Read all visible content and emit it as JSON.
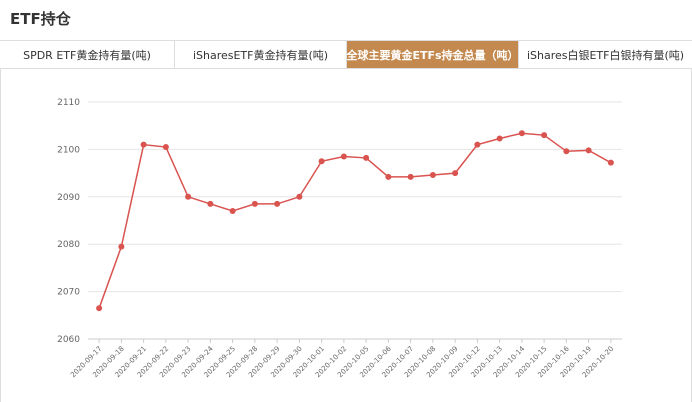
{
  "page": {
    "title": "ETF持仓"
  },
  "tabs": [
    {
      "label": "SPDR ETF黄金持有量(吨)",
      "active": false
    },
    {
      "label": "iSharesETF黄金持有量(吨)",
      "active": false
    },
    {
      "label": "全球主要黄金ETFs持金总量（吨）",
      "active": true
    },
    {
      "label": "iShares白银ETF白银持有量(吨)",
      "active": false
    }
  ],
  "colors": {
    "accent": "#c3894f",
    "line": "#d9534f",
    "grid": "#e6e6e6"
  },
  "chart_data": {
    "type": "line",
    "title": "",
    "xlabel": "",
    "ylabel": "",
    "ylim": [
      2060,
      2110
    ],
    "yticks": [
      2060,
      2070,
      2080,
      2090,
      2100,
      2110
    ],
    "grid": true,
    "x": [
      "2020-09-17",
      "2020-09-18",
      "2020-09-21",
      "2020-09-22",
      "2020-09-23",
      "2020-09-24",
      "2020-09-25",
      "2020-09-28",
      "2020-09-29",
      "2020-09-30",
      "2020-10-01",
      "2020-10-02",
      "2020-10-05",
      "2020-10-06",
      "2020-10-07",
      "2020-10-08",
      "2020-10-09",
      "2020-10-12",
      "2020-10-13",
      "2020-10-14",
      "2020-10-15",
      "2020-10-16",
      "2020-10-19",
      "2020-10-20"
    ],
    "series": [
      {
        "values": [
          2066.5,
          2079.5,
          2101,
          2100.5,
          2090,
          2088.5,
          2087,
          2088.5,
          2088.5,
          2090,
          2097.5,
          2098.5,
          2098.2,
          2094.2,
          2094.2,
          2094.6,
          2095,
          2101,
          2102.3,
          2103.4,
          2103,
          2099.6,
          2099.8,
          2097.2
        ]
      }
    ]
  }
}
